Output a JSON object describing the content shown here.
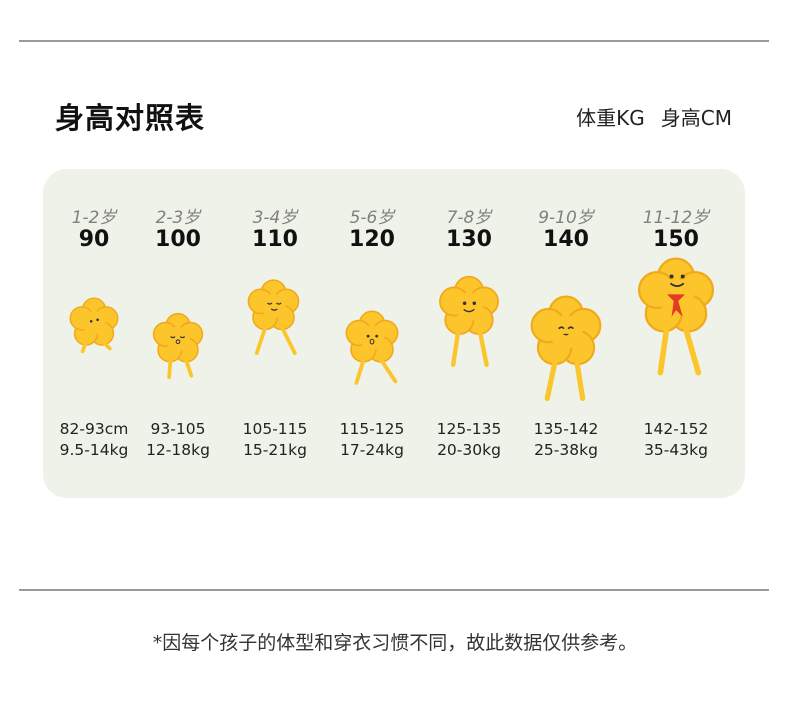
{
  "title": "身高对照表",
  "legend": {
    "weight": "体重KG",
    "height": "身高CM"
  },
  "sizes": [
    {
      "age": "1-2岁",
      "size": "90",
      "height": "82-93cm",
      "weight": "9.5-14kg"
    },
    {
      "age": "2-3岁",
      "size": "100",
      "height": "93-105",
      "weight": "12-18kg"
    },
    {
      "age": "3-4岁",
      "size": "110",
      "height": "105-115",
      "weight": "15-21kg"
    },
    {
      "age": "5-6岁",
      "size": "120",
      "height": "115-125",
      "weight": "17-24kg"
    },
    {
      "age": "7-8岁",
      "size": "130",
      "height": "125-135",
      "weight": "20-30kg"
    },
    {
      "age": "9-10岁",
      "size": "140",
      "height": "135-142",
      "weight": "25-38kg"
    },
    {
      "age": "11-12岁",
      "size": "150",
      "height": "142-152",
      "weight": "35-43kg"
    }
  ],
  "colors": {
    "flower": "#fbc52b",
    "flower_stroke": "#f1a91a",
    "panel": "#eff2e9",
    "scarf": "#e23a24"
  },
  "footnote": "*因每个孩子的体型和穿衣习惯不同，故此数据仅供参考。"
}
